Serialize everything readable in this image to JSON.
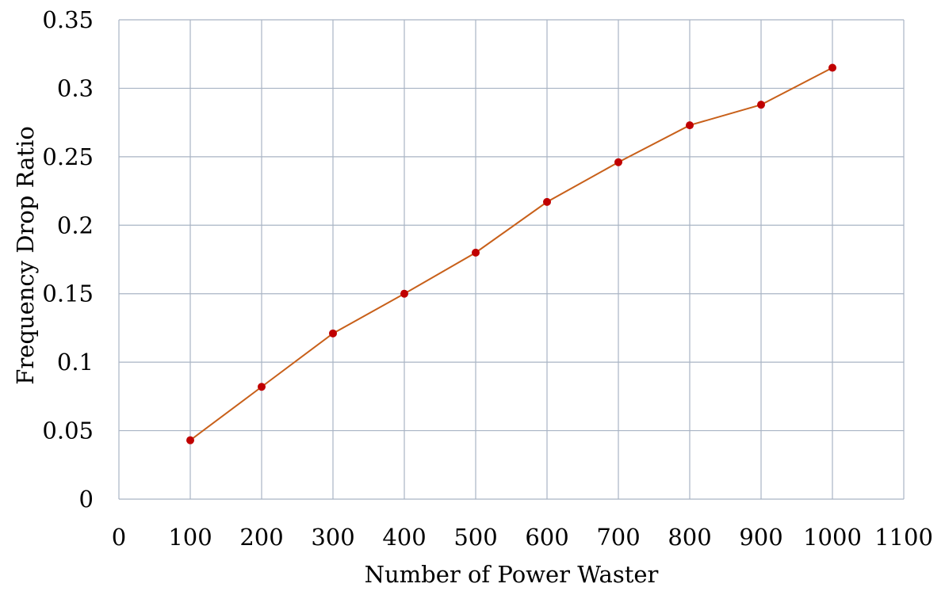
{
  "chart_data": {
    "type": "line",
    "title": "",
    "xlabel": "Number of Power Waster",
    "ylabel": "Frequency Drop Ratio",
    "xlim": [
      0,
      1100
    ],
    "ylim": [
      0,
      0.35
    ],
    "x_ticks": [
      0,
      100,
      200,
      300,
      400,
      500,
      600,
      700,
      800,
      900,
      1000,
      1100
    ],
    "x_tick_labels": [
      "0",
      "100",
      "200",
      "300",
      "400",
      "500",
      "600",
      "700",
      "800",
      "900",
      "1000",
      "1100"
    ],
    "y_ticks": [
      0,
      0.05,
      0.1,
      0.15,
      0.2,
      0.25,
      0.3,
      0.35
    ],
    "y_tick_labels": [
      "0",
      "0.05",
      "0.1",
      "0.15",
      "0.2",
      "0.25",
      "0.3",
      "0.35"
    ],
    "grid": true,
    "legend": "none",
    "series": [
      {
        "x": [
          100,
          200,
          300,
          400,
          500,
          600,
          700,
          800,
          900,
          1000
        ],
        "y": [
          0.043,
          0.082,
          0.121,
          0.15,
          0.18,
          0.217,
          0.246,
          0.273,
          0.288,
          0.315
        ],
        "line_color": "#c8601a",
        "marker_color": "#c00000"
      }
    ]
  }
}
